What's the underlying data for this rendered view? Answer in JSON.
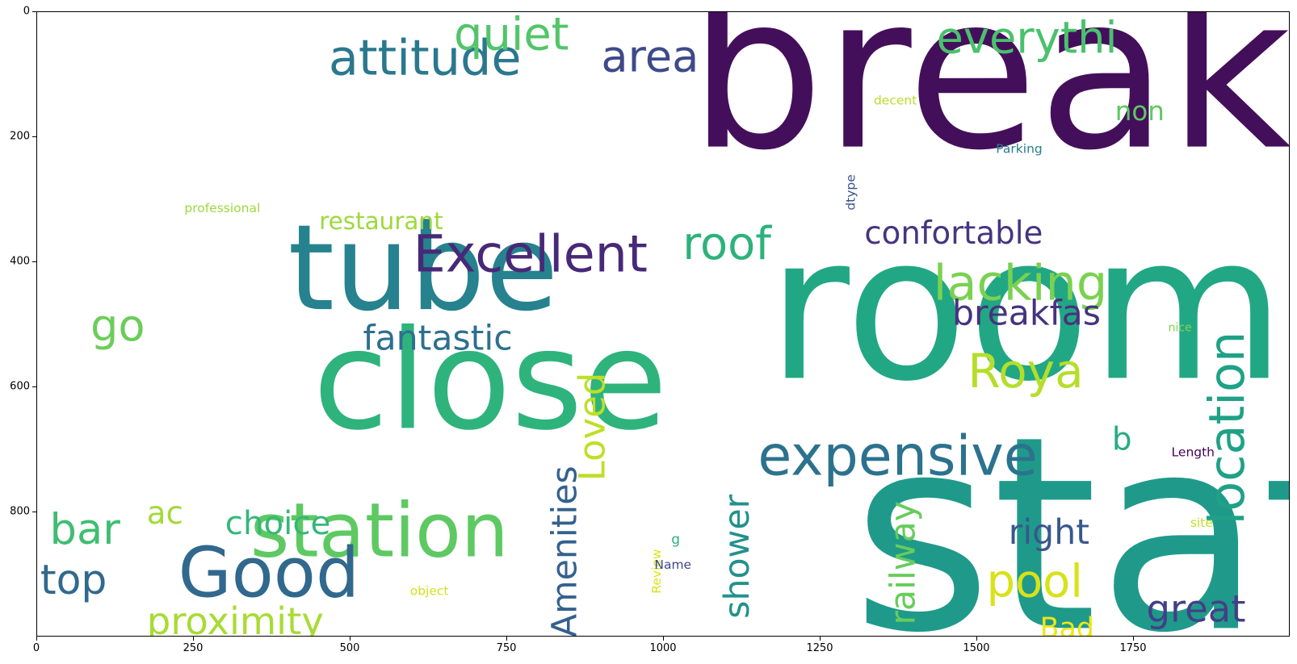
{
  "chart_data": {
    "type": "wordcloud",
    "title": "",
    "xlabel": "",
    "ylabel": "",
    "xlim": [
      0,
      2000
    ],
    "ylim": [
      1000,
      0
    ],
    "x_ticks": [
      "0",
      "250",
      "500",
      "750",
      "1000",
      "1250",
      "1500",
      "1750"
    ],
    "x_tick_values": [
      0,
      250,
      500,
      750,
      1000,
      1250,
      1500,
      1750
    ],
    "y_ticks": [
      "0",
      "200",
      "400",
      "600",
      "800"
    ],
    "y_tick_values": [
      0,
      200,
      400,
      600,
      800
    ],
    "words": [
      {
        "text": "breakfast",
        "x": 1040,
        "y": 215,
        "size": 340,
        "rotate": false,
        "color": "#440f5a"
      },
      {
        "text": "room",
        "x": 1165,
        "y": 585,
        "size": 320,
        "rotate": false,
        "color": "#22a784"
      },
      {
        "text": "staff",
        "x": 1300,
        "y": 985,
        "size": 430,
        "rotate": false,
        "color": "#1f9a8a"
      },
      {
        "text": "close",
        "x": 440,
        "y": 665,
        "size": 220,
        "rotate": false,
        "color": "#2eb37c"
      },
      {
        "text": "tube",
        "x": 400,
        "y": 475,
        "size": 190,
        "rotate": false,
        "color": "#26828e"
      },
      {
        "text": "station",
        "x": 340,
        "y": 870,
        "size": 120,
        "rotate": false,
        "color": "#5ec962"
      },
      {
        "text": "Good",
        "x": 225,
        "y": 935,
        "size": 110,
        "rotate": false,
        "color": "#31688e"
      },
      {
        "text": "expensive",
        "x": 1150,
        "y": 740,
        "size": 88,
        "rotate": false,
        "color": "#2c728e"
      },
      {
        "text": "Excellent",
        "x": 600,
        "y": 415,
        "size": 82,
        "rotate": false,
        "color": "#482878"
      },
      {
        "text": "lacking",
        "x": 1430,
        "y": 460,
        "size": 78,
        "rotate": false,
        "color": "#7ad151"
      },
      {
        "text": "Roya",
        "x": 1485,
        "y": 600,
        "size": 75,
        "rotate": false,
        "color": "#b5de2b"
      },
      {
        "text": "location",
        "x": 1925,
        "y": 820,
        "size": 78,
        "rotate": true,
        "color": "#1fa187"
      },
      {
        "text": "attitude",
        "x": 465,
        "y": 100,
        "size": 78,
        "rotate": false,
        "color": "#2a788e"
      },
      {
        "text": "quiet",
        "x": 665,
        "y": 60,
        "size": 72,
        "rotate": false,
        "color": "#52c569"
      },
      {
        "text": "area",
        "x": 900,
        "y": 95,
        "size": 70,
        "rotate": false,
        "color": "#3e4a89"
      },
      {
        "text": "everythi",
        "x": 1435,
        "y": 65,
        "size": 70,
        "rotate": false,
        "color": "#4ac16d"
      },
      {
        "text": "roof",
        "x": 1030,
        "y": 395,
        "size": 72,
        "rotate": false,
        "color": "#2db27d"
      },
      {
        "text": "confortable",
        "x": 1320,
        "y": 370,
        "size": 50,
        "rotate": false,
        "color": "#453581"
      },
      {
        "text": "breakfas",
        "x": 1460,
        "y": 500,
        "size": 55,
        "rotate": false,
        "color": "#46337e"
      },
      {
        "text": "fantastic",
        "x": 520,
        "y": 540,
        "size": 55,
        "rotate": false,
        "color": "#2e6f8e"
      },
      {
        "text": "Loved",
        "x": 905,
        "y": 750,
        "size": 58,
        "rotate": true,
        "color": "#bddf26"
      },
      {
        "text": "Amenities",
        "x": 860,
        "y": 1000,
        "size": 55,
        "rotate": true,
        "color": "#34618d"
      },
      {
        "text": "railway",
        "x": 1400,
        "y": 980,
        "size": 55,
        "rotate": true,
        "color": "#67cc5c"
      },
      {
        "text": "shower",
        "x": 1135,
        "y": 970,
        "size": 55,
        "rotate": true,
        "color": "#21918c"
      },
      {
        "text": "restaurant",
        "x": 450,
        "y": 347,
        "size": 38,
        "rotate": false,
        "color": "#9dd93b"
      },
      {
        "text": "pool",
        "x": 1515,
        "y": 935,
        "size": 72,
        "rotate": false,
        "color": "#d8e219"
      },
      {
        "text": "great",
        "x": 1770,
        "y": 975,
        "size": 60,
        "rotate": false,
        "color": "#424086"
      },
      {
        "text": "right",
        "x": 1550,
        "y": 850,
        "size": 55,
        "rotate": false,
        "color": "#38588c"
      },
      {
        "text": "Bad",
        "x": 1600,
        "y": 1000,
        "size": 45,
        "rotate": false,
        "color": "#f0e51c"
      },
      {
        "text": "go",
        "x": 85,
        "y": 525,
        "size": 70,
        "rotate": false,
        "color": "#6ccd5a"
      },
      {
        "text": "bar",
        "x": 20,
        "y": 850,
        "size": 68,
        "rotate": false,
        "color": "#40bd72"
      },
      {
        "text": "top",
        "x": 5,
        "y": 930,
        "size": 65,
        "rotate": false,
        "color": "#31688e"
      },
      {
        "text": "ac",
        "x": 175,
        "y": 818,
        "size": 50,
        "rotate": false,
        "color": "#a2da37"
      },
      {
        "text": "choice",
        "x": 300,
        "y": 835,
        "size": 52,
        "rotate": false,
        "color": "#35b779"
      },
      {
        "text": "proximity",
        "x": 175,
        "y": 995,
        "size": 60,
        "rotate": false,
        "color": "#a8db34"
      },
      {
        "text": "non",
        "x": 1720,
        "y": 173,
        "size": 42,
        "rotate": false,
        "color": "#5dc863"
      },
      {
        "text": "b",
        "x": 1715,
        "y": 700,
        "size": 50,
        "rotate": false,
        "color": "#25ac82"
      },
      {
        "text": "decent",
        "x": 1335,
        "y": 148,
        "size": 20,
        "rotate": false,
        "color": "#b8de29"
      },
      {
        "text": "Parking",
        "x": 1530,
        "y": 225,
        "size": 20,
        "rotate": false,
        "color": "#287d8e"
      },
      {
        "text": "dtype",
        "x": 1305,
        "y": 317,
        "size": 20,
        "rotate": true,
        "color": "#3b528b"
      },
      {
        "text": "professional",
        "x": 235,
        "y": 320,
        "size": 20,
        "rotate": false,
        "color": "#9bd93c"
      },
      {
        "text": "nice",
        "x": 1805,
        "y": 510,
        "size": 18,
        "rotate": false,
        "color": "#7fd34e"
      },
      {
        "text": "Length",
        "x": 1810,
        "y": 710,
        "size": 20,
        "rotate": false,
        "color": "#440154"
      },
      {
        "text": "site",
        "x": 1840,
        "y": 823,
        "size": 20,
        "rotate": false,
        "color": "#c0df25"
      },
      {
        "text": "g",
        "x": 1012,
        "y": 850,
        "size": 22,
        "rotate": false,
        "color": "#2ab07f"
      },
      {
        "text": "Review",
        "x": 995,
        "y": 930,
        "size": 20,
        "rotate": true,
        "color": "#dae319"
      },
      {
        "text": "Name",
        "x": 985,
        "y": 890,
        "size": 20,
        "rotate": false,
        "color": "#3e4989"
      },
      {
        "text": "object",
        "x": 595,
        "y": 932,
        "size": 20,
        "rotate": false,
        "color": "#d0e11c"
      }
    ]
  }
}
